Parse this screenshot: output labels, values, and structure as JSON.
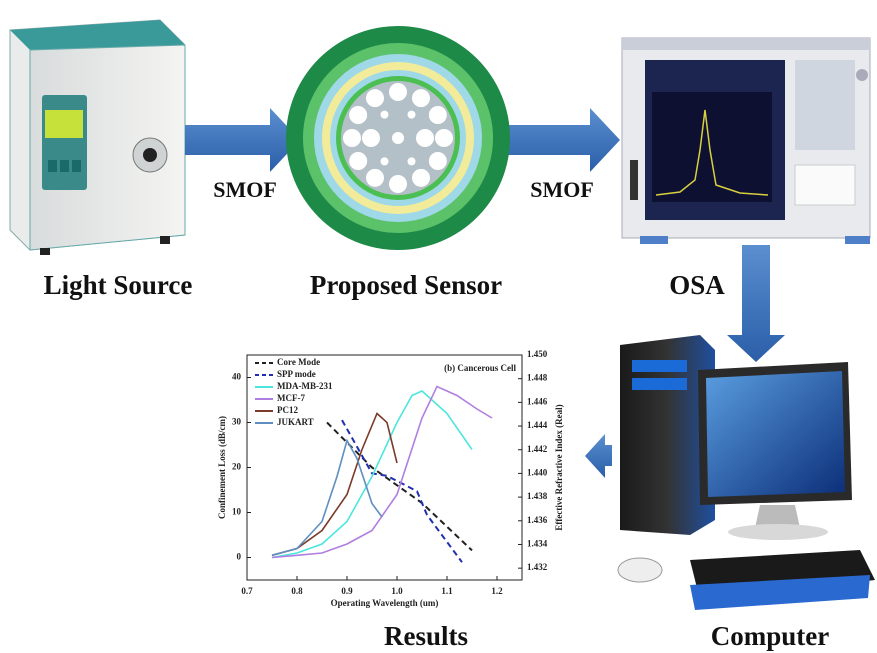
{
  "labels": {
    "light_source": "Light Source",
    "proposed_sensor": "Proposed Sensor",
    "osa": "OSA",
    "results": "Results",
    "computer": "Computer",
    "smof_left": "SMOF",
    "smof_right": "SMOF"
  },
  "results_chart": {
    "type": "line",
    "annotation": "(b) Cancerous Cell",
    "x_label": "Operating Wavelength (um)",
    "y_label": "Confinement Loss (dB/cm)",
    "y2_label": "Effective Refractive Index (Real)",
    "xlim": [
      0.7,
      1.25
    ],
    "xticks": [
      0.7,
      0.8,
      0.9,
      {
        "value": 1.0,
        "label": "1.0"
      },
      1.1,
      1.2
    ],
    "ylim": [
      -5,
      45
    ],
    "yticks": [
      0,
      10,
      20,
      30,
      40
    ],
    "y2lim": [
      1.431,
      1.45
    ],
    "y2ticks": [
      {
        "value": 1.432,
        "label": "1.432"
      },
      {
        "value": 1.434,
        "label": "1.434"
      },
      {
        "value": 1.436,
        "label": "1.436"
      },
      {
        "value": 1.438,
        "label": "1.438"
      },
      {
        "value": 1.44,
        "label": "1.440"
      },
      {
        "value": 1.442,
        "label": "1.442"
      },
      {
        "value": 1.444,
        "label": "1.444"
      },
      {
        "value": 1.446,
        "label": "1.446"
      },
      {
        "value": 1.448,
        "label": "1.448"
      },
      {
        "value": 1.45,
        "label": "1.450"
      }
    ],
    "series": [
      {
        "name": "Core Mode",
        "color": "#222222",
        "dashed": true,
        "axis": "y2",
        "x": [
          0.86,
          0.95,
          1.05,
          1.15
        ],
        "values": [
          1.4443,
          1.4405,
          1.4375,
          1.4335
        ]
      },
      {
        "name": "SPP mode",
        "color": "#1f2fb0",
        "dashed": true,
        "axis": "y2",
        "x": [
          0.89,
          0.95,
          0.98,
          1.04,
          1.06,
          1.13
        ],
        "values": [
          1.4445,
          1.44,
          1.4398,
          1.4385,
          1.4365,
          1.4325
        ]
      },
      {
        "name": "MDA-MB-231",
        "color": "#4de6de",
        "x": [
          0.75,
          0.8,
          0.85,
          0.9,
          0.95,
          1.0,
          1.03,
          1.05,
          1.1,
          1.15
        ],
        "values": [
          0,
          1,
          3,
          8,
          18,
          30,
          36,
          37,
          32,
          24
        ]
      },
      {
        "name": "MCF-7",
        "color": "#b07ee0",
        "x": [
          0.75,
          0.8,
          0.85,
          0.9,
          0.95,
          1.0,
          1.05,
          1.08,
          1.12,
          1.16,
          1.19
        ],
        "values": [
          0,
          0.5,
          1,
          3,
          6,
          14,
          31,
          38,
          36,
          33,
          31
        ]
      },
      {
        "name": "PC12",
        "color": "#7b3a2a",
        "x": [
          0.75,
          0.8,
          0.85,
          0.9,
          0.93,
          0.96,
          0.98,
          1.0
        ],
        "values": [
          0.5,
          2,
          6,
          14,
          24,
          32,
          30,
          21
        ]
      },
      {
        "name": "JUKART",
        "color": "#5f8fc0",
        "x": [
          0.75,
          0.8,
          0.85,
          0.88,
          0.9,
          0.92,
          0.95,
          0.97
        ],
        "values": [
          0.5,
          2,
          8,
          18,
          26,
          22,
          12,
          9
        ]
      }
    ]
  }
}
